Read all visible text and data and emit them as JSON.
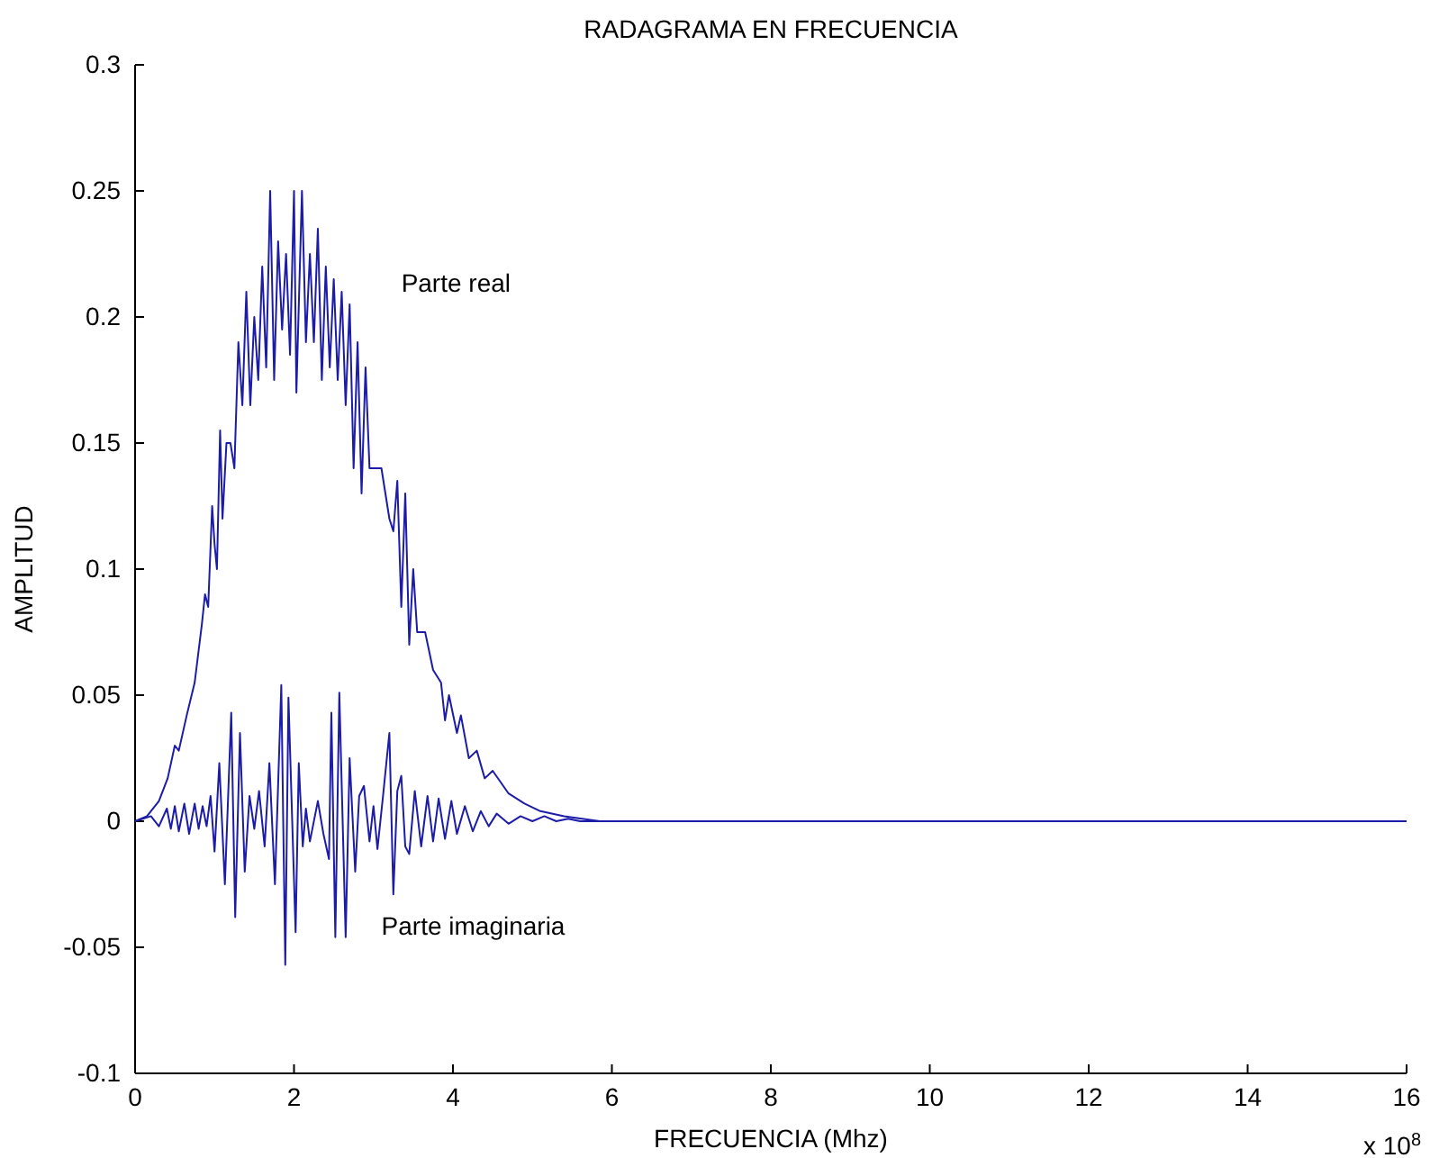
{
  "chart_data": {
    "type": "line",
    "title": "RADAGRAMA EN FRECUENCIA",
    "xlabel": "FRECUENCIA (Mhz)",
    "ylabel": "AMPLITUD",
    "xlim": [
      0,
      16
    ],
    "xticks": [
      0,
      2,
      4,
      6,
      8,
      10,
      12,
      14,
      16
    ],
    "ylim": [
      -0.1,
      0.3
    ],
    "yticks": [
      -0.1,
      -0.05,
      0,
      0.05,
      0.1,
      0.15,
      0.2,
      0.25,
      0.3
    ],
    "grid": false,
    "legend": false,
    "marker": "none",
    "line_style": "solid",
    "annotations": [
      "x 10$^{8}$"
    ],
    "series": [
      {
        "name": "Parte real",
        "color": "#1c1ca8",
        "x": [
          0,
          0.15,
          0.3,
          0.41,
          0.5,
          0.55,
          0.65,
          0.75,
          0.84,
          0.88,
          0.92,
          0.97,
          1.0,
          1.03,
          1.07,
          1.1,
          1.15,
          1.2,
          1.25,
          1.3,
          1.35,
          1.4,
          1.45,
          1.5,
          1.55,
          1.6,
          1.65,
          1.7,
          1.75,
          1.8,
          1.85,
          1.9,
          1.95,
          2.0,
          2.03,
          2.1,
          2.15,
          2.2,
          2.25,
          2.3,
          2.35,
          2.4,
          2.45,
          2.5,
          2.55,
          2.6,
          2.65,
          2.7,
          2.75,
          2.8,
          2.85,
          2.9,
          2.95,
          3.0,
          3.1,
          3.2,
          3.25,
          3.3,
          3.35,
          3.4,
          3.45,
          3.5,
          3.55,
          3.65,
          3.75,
          3.85,
          3.9,
          3.95,
          4.05,
          4.1,
          4.2,
          4.3,
          4.4,
          4.5,
          4.7,
          4.9,
          5.1,
          5.4,
          5.85,
          16
        ],
        "values": [
          0,
          0.002,
          0.008,
          0.017,
          0.03,
          0.028,
          0.042,
          0.055,
          0.078,
          0.09,
          0.085,
          0.125,
          0.11,
          0.1,
          0.155,
          0.12,
          0.15,
          0.15,
          0.14,
          0.19,
          0.165,
          0.21,
          0.165,
          0.2,
          0.175,
          0.22,
          0.18,
          0.25,
          0.175,
          0.23,
          0.195,
          0.225,
          0.185,
          0.25,
          0.17,
          0.25,
          0.19,
          0.225,
          0.19,
          0.235,
          0.175,
          0.22,
          0.18,
          0.215,
          0.175,
          0.21,
          0.165,
          0.205,
          0.14,
          0.19,
          0.13,
          0.18,
          0.14,
          0.14,
          0.14,
          0.12,
          0.115,
          0.135,
          0.085,
          0.13,
          0.07,
          0.1,
          0.075,
          0.075,
          0.06,
          0.055,
          0.04,
          0.05,
          0.035,
          0.042,
          0.025,
          0.028,
          0.017,
          0.02,
          0.011,
          0.007,
          0.004,
          0.002,
          0,
          0
        ]
      },
      {
        "name": "Parte imaginaria",
        "color": "#1c1ca8",
        "x": [
          0,
          0.2,
          0.3,
          0.4,
          0.45,
          0.5,
          0.55,
          0.62,
          0.68,
          0.75,
          0.8,
          0.85,
          0.9,
          0.95,
          1.0,
          1.06,
          1.13,
          1.21,
          1.26,
          1.32,
          1.38,
          1.44,
          1.5,
          1.56,
          1.63,
          1.69,
          1.76,
          1.84,
          1.89,
          1.93,
          2.02,
          2.06,
          2.11,
          2.15,
          2.2,
          2.3,
          2.37,
          2.44,
          2.47,
          2.52,
          2.57,
          2.65,
          2.7,
          2.77,
          2.82,
          2.88,
          2.95,
          3.0,
          3.05,
          3.12,
          3.2,
          3.25,
          3.3,
          3.35,
          3.4,
          3.45,
          3.52,
          3.6,
          3.68,
          3.75,
          3.82,
          3.9,
          3.98,
          4.05,
          4.15,
          4.25,
          4.35,
          4.45,
          4.55,
          4.7,
          4.85,
          5.0,
          5.15,
          5.3,
          5.45,
          5.6,
          16
        ],
        "values": [
          0,
          0.002,
          -0.002,
          0.005,
          -0.003,
          0.006,
          -0.004,
          0.007,
          -0.005,
          0.007,
          -0.003,
          0.006,
          -0.002,
          0.01,
          -0.012,
          0.023,
          -0.025,
          0.043,
          -0.038,
          0.035,
          -0.02,
          0.01,
          -0.003,
          0.012,
          -0.01,
          0.023,
          -0.025,
          0.054,
          -0.057,
          0.049,
          -0.044,
          0.023,
          -0.01,
          0.005,
          -0.008,
          0.008,
          -0.005,
          -0.015,
          0.043,
          -0.046,
          0.051,
          -0.046,
          0.025,
          -0.02,
          0.01,
          0.014,
          -0.008,
          0.006,
          -0.011,
          0.01,
          0.035,
          -0.029,
          0.012,
          0.018,
          -0.01,
          -0.013,
          0.012,
          -0.01,
          0.01,
          -0.008,
          0.009,
          -0.007,
          0.008,
          -0.005,
          0.006,
          -0.004,
          0.004,
          -0.002,
          0.003,
          -0.001,
          0.002,
          0,
          0.002,
          0,
          0.001,
          0,
          0
        ]
      }
    ]
  }
}
